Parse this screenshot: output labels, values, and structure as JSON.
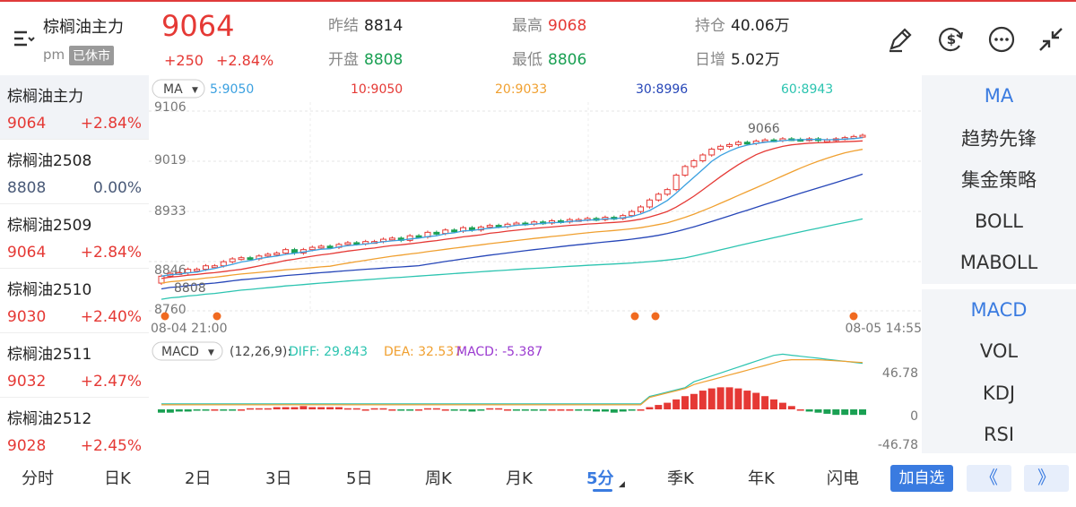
{
  "header": {
    "title": "棕榈油主力",
    "session": "pm",
    "status_badge": "已休市",
    "price": "9064",
    "change": "+250",
    "change_pct": "+2.84%",
    "stats": [
      {
        "label": "昨结",
        "value": "8814",
        "color": "dark"
      },
      {
        "label": "最高",
        "value": "9068",
        "color": "red"
      },
      {
        "label": "持仓",
        "value": "40.06万",
        "color": "dark"
      },
      {
        "label": "开盘",
        "value": "8808",
        "color": "green"
      },
      {
        "label": "最低",
        "value": "8806",
        "color": "green"
      },
      {
        "label": "日增",
        "value": "5.02万",
        "color": "dark"
      }
    ]
  },
  "contracts": [
    {
      "name": "棕榈油主力",
      "price": "9064",
      "pct": "+2.84%",
      "color": "#e53935"
    },
    {
      "name": "棕榈油2508",
      "price": "8808",
      "pct": "0.00%",
      "color": "#4a5a78"
    },
    {
      "name": "棕榈油2509",
      "price": "9064",
      "pct": "+2.84%",
      "color": "#e53935"
    },
    {
      "name": "棕榈油2510",
      "price": "9030",
      "pct": "+2.40%",
      "color": "#e53935"
    },
    {
      "name": "棕榈油2511",
      "price": "9032",
      "pct": "+2.47%",
      "color": "#e53935"
    },
    {
      "name": "棕榈油2512",
      "price": "9028",
      "pct": "+2.45%",
      "color": "#e53935"
    }
  ],
  "chart_data": {
    "type": "candlestick",
    "ma_label": "MA",
    "ma_legend": [
      {
        "text": "5:9050",
        "color": "#3aa0e0"
      },
      {
        "text": "10:9050",
        "color": "#e53935"
      },
      {
        "text": "20:9033",
        "color": "#f0a030"
      },
      {
        "text": "30:8996",
        "color": "#2646b8"
      },
      {
        "text": "60:8943",
        "color": "#2cc4b0"
      }
    ],
    "y_ticks": [
      "9106",
      "9019",
      "8933",
      "8846",
      "8760"
    ],
    "ylim": [
      8760,
      9106
    ],
    "x_start": "08-04 21:00",
    "x_end": "08-05 14:55",
    "high_mark": "9066",
    "low_mark": "8808",
    "closes": [
      8820,
      8825,
      8826,
      8832,
      8832,
      8838,
      8838,
      8845,
      8850,
      8852,
      8850,
      8855,
      8858,
      8860,
      8866,
      8860,
      8866,
      8870,
      8872,
      8870,
      8875,
      8878,
      8876,
      8880,
      8880,
      8884,
      8886,
      8882,
      8890,
      8888,
      8896,
      8894,
      8900,
      8898,
      8904,
      8900,
      8905,
      8908,
      8906,
      8910,
      8912,
      8910,
      8914,
      8912,
      8916,
      8914,
      8918,
      8918,
      8920,
      8918,
      8922,
      8920,
      8925,
      8932,
      8940,
      8952,
      8962,
      8970,
      8995,
      9010,
      9020,
      9030,
      9040,
      9045,
      9048,
      9052,
      9050,
      9054,
      9056,
      9055,
      9058,
      9057,
      9056,
      9058,
      9055,
      9056,
      9058,
      9060,
      9062,
      9064
    ],
    "opens": [
      8808,
      8820,
      8825,
      8826,
      8832,
      8832,
      8838,
      8838,
      8845,
      8850,
      8852,
      8850,
      8855,
      8858,
      8860,
      8866,
      8860,
      8866,
      8870,
      8872,
      8870,
      8875,
      8878,
      8876,
      8880,
      8880,
      8884,
      8886,
      8882,
      8890,
      8888,
      8896,
      8894,
      8900,
      8898,
      8904,
      8900,
      8905,
      8908,
      8906,
      8910,
      8912,
      8910,
      8914,
      8912,
      8916,
      8914,
      8918,
      8918,
      8920,
      8918,
      8922,
      8920,
      8925,
      8932,
      8940,
      8952,
      8962,
      8970,
      8995,
      9010,
      9020,
      9030,
      9040,
      9045,
      9048,
      9052,
      9050,
      9054,
      9056,
      9055,
      9058,
      9057,
      9056,
      9058,
      9055,
      9056,
      9058,
      9060,
      9062
    ],
    "macd_label": "MACD",
    "macd_params": "(12,26,9):",
    "diff": "DIFF: 29.843",
    "dea": "DEA: 32.537",
    "macd": "MACD: -5.387",
    "macd_ticks": [
      "46.78",
      "0",
      "-46.78"
    ],
    "macd_hist": [
      -3,
      -3,
      -2,
      -2,
      -1,
      -1,
      0,
      -1,
      -1,
      0,
      1,
      1,
      1,
      2,
      2,
      2,
      3,
      2,
      2,
      2,
      2,
      1,
      1,
      0,
      1,
      1,
      0,
      -1,
      -1,
      0,
      1,
      1,
      0,
      -1,
      -1,
      -2,
      -1,
      1,
      1,
      0,
      -1,
      -1,
      -1,
      -1,
      0,
      0,
      0,
      -1,
      -1,
      -2,
      -2,
      -3,
      -2,
      -1,
      0,
      2,
      4,
      6,
      9,
      12,
      14,
      17,
      19,
      20,
      20,
      19,
      17,
      15,
      12,
      9,
      6,
      3,
      0,
      -2,
      -3,
      -4,
      -5,
      -5,
      -5,
      -5
    ]
  },
  "right_panel": {
    "main": [
      "MA",
      "趋势先锋",
      "集金策略",
      "BOLL",
      "MABOLL"
    ],
    "sub": [
      "MACD",
      "VOL",
      "KDJ",
      "RSI"
    ]
  },
  "periods": [
    "分时",
    "日K",
    "2日",
    "3日",
    "5日",
    "周K",
    "月K",
    "5分",
    "季K",
    "年K",
    "闪电"
  ],
  "active_period": "5分",
  "add_button": "加自选",
  "prev": "《",
  "next": "》"
}
